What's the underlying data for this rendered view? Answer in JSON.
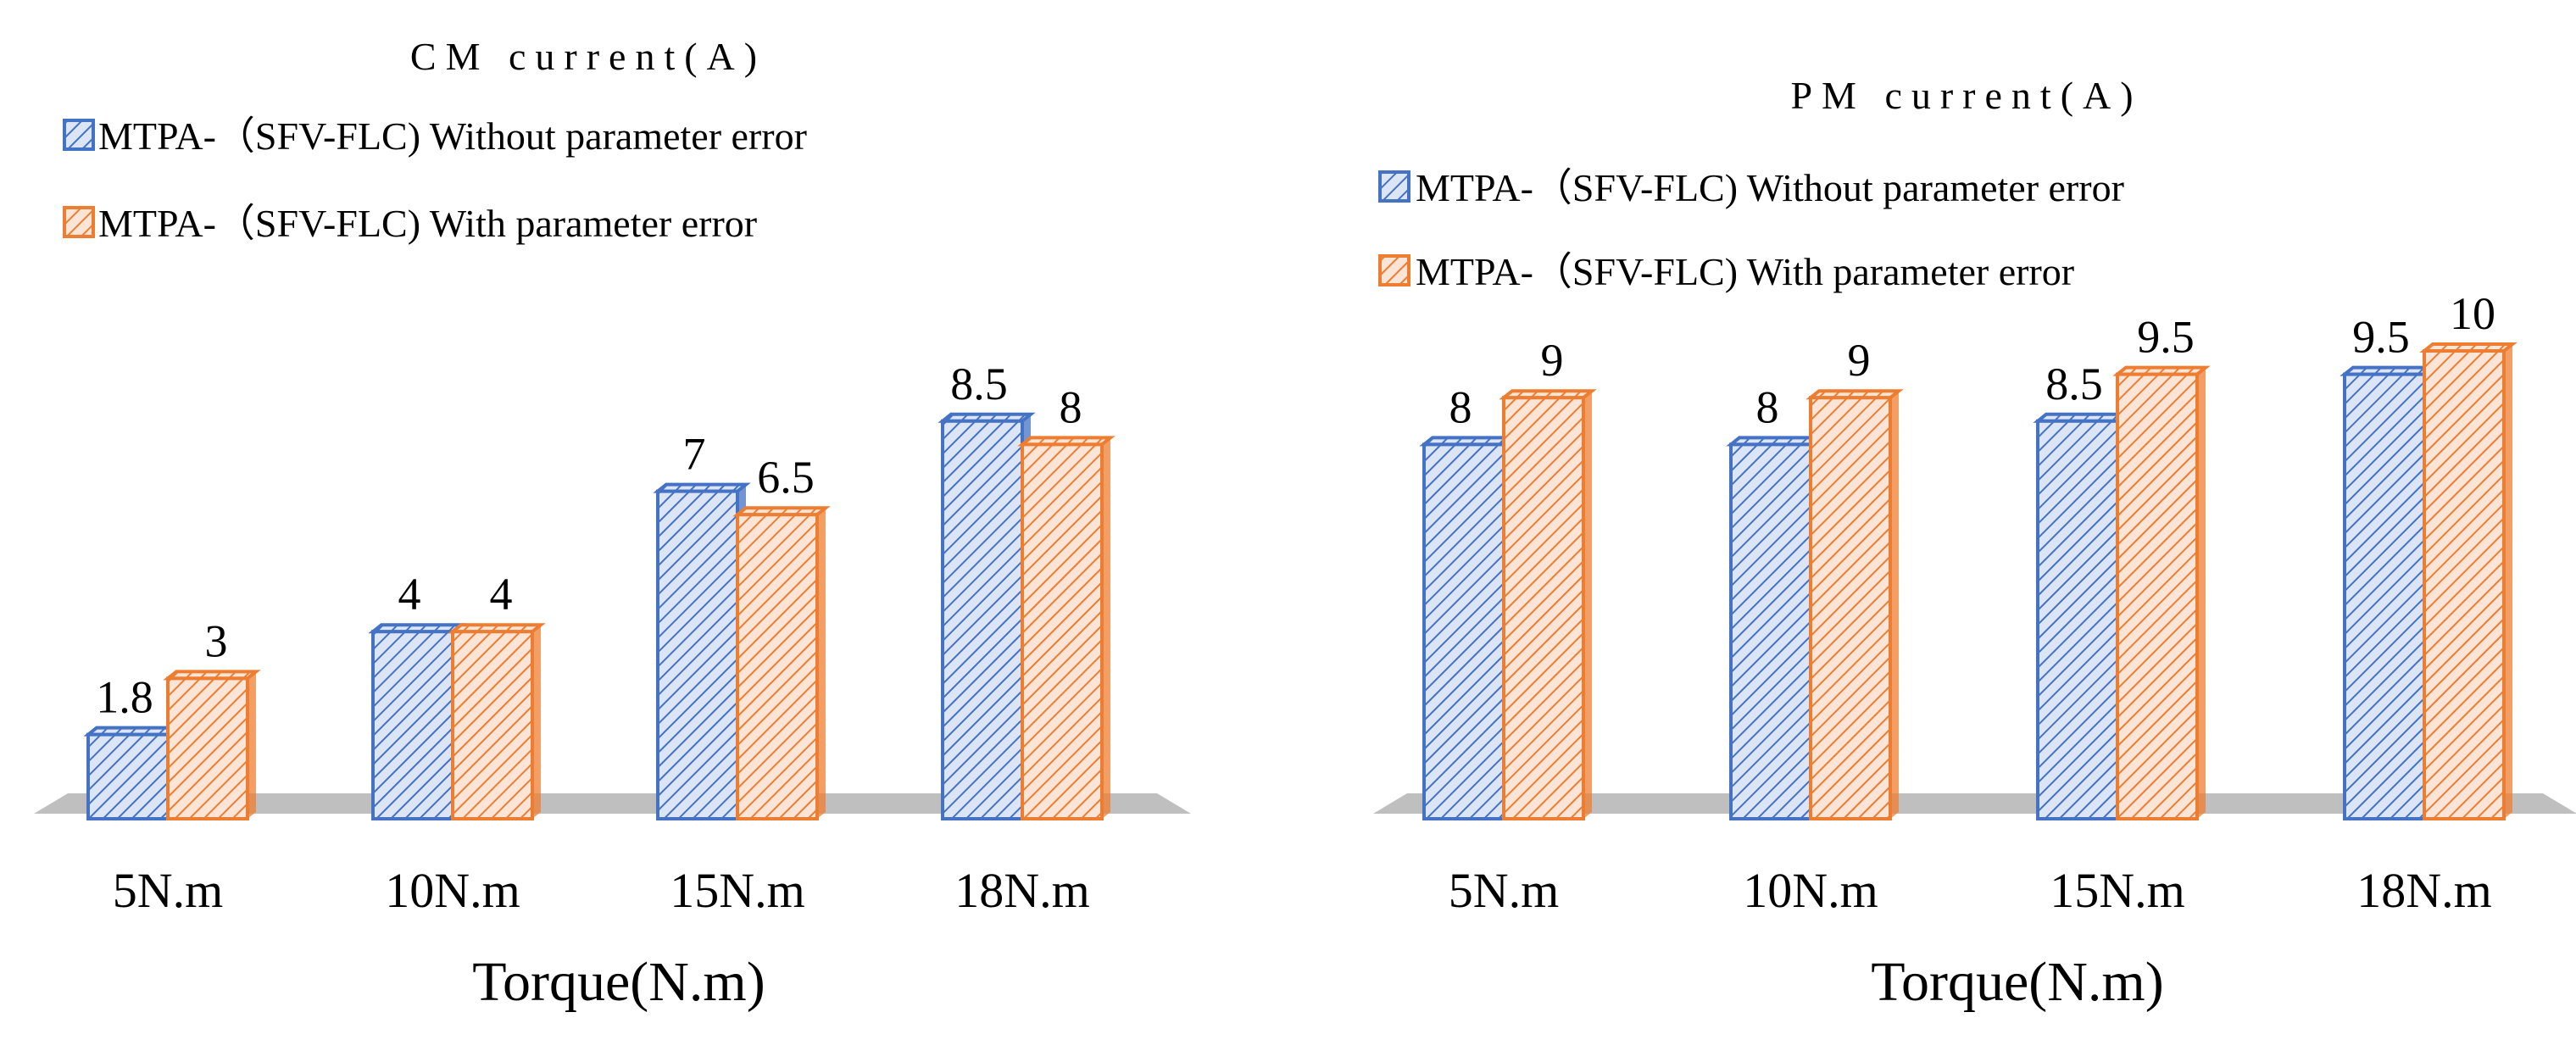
{
  "colors": {
    "series1": "#4472C4",
    "series1_fill": "#DCE5F5",
    "series2": "#ED7D31",
    "series2_fill": "#FCE4D6",
    "floor": "#BFBFBF"
  },
  "chart_data": [
    {
      "type": "bar",
      "title": "CM current(A)",
      "categories": [
        "5N.m",
        "10N.m",
        "15N.m",
        "18N.m"
      ],
      "xlabel": "Torque(N.m)",
      "ylabel": "",
      "ylim": [
        0,
        10
      ],
      "legend_position": "top-left",
      "series": [
        {
          "name": "MTPA-（SFV-FLC) Without parameter error",
          "values": [
            1.8,
            4,
            7,
            8.5
          ]
        },
        {
          "name": "MTPA-（SFV-FLC) With parameter error",
          "values": [
            3,
            4,
            6.5,
            8
          ]
        }
      ],
      "data_labels": [
        [
          "1.8",
          "4",
          "7",
          "8.5"
        ],
        [
          "3",
          "4",
          "6.5",
          "8"
        ]
      ]
    },
    {
      "type": "bar",
      "title": "PM current(A)",
      "categories": [
        "5N.m",
        "10N.m",
        "15N.m",
        "18N.m"
      ],
      "xlabel": "Torque(N.m)",
      "ylabel": "",
      "ylim": [
        0,
        10
      ],
      "legend_position": "top-left",
      "series": [
        {
          "name": "MTPA-（SFV-FLC) Without parameter error",
          "values": [
            8,
            8,
            8.5,
            9.5
          ]
        },
        {
          "name": "MTPA-（SFV-FLC) With parameter error",
          "values": [
            9,
            9,
            9.5,
            10
          ]
        }
      ],
      "data_labels": [
        [
          "8",
          "8",
          "8.5",
          "9.5"
        ],
        [
          "9",
          "9",
          "9.5",
          "10"
        ]
      ]
    }
  ]
}
